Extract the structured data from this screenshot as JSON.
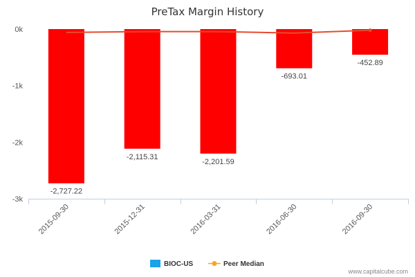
{
  "chart_data": {
    "type": "bar",
    "title": "PreTax Margin History",
    "categories": [
      "2015-09-30",
      "2015-12-31",
      "2016-03-31",
      "2016-06-30",
      "2016-09-30"
    ],
    "series": [
      {
        "name": "BIOC-US",
        "type": "bar",
        "values": [
          -2727.22,
          -2115.31,
          -2201.59,
          -693.01,
          -452.89
        ],
        "labels": [
          "-2,727.22",
          "-2,115.31",
          "-2,201.59",
          "-693.01",
          "-452.89"
        ],
        "color": "#ff0000",
        "legend_color": "#1aa3e8"
      },
      {
        "name": "Peer Median",
        "type": "line",
        "values": [
          -60,
          -45,
          -45,
          -70,
          -20
        ],
        "color": "#e84a2c",
        "legend_color": "#f5a623"
      }
    ],
    "ylim": [
      -3000,
      0
    ],
    "yticks": [
      {
        "value": 0,
        "label": "0k"
      },
      {
        "value": -1000,
        "label": "-1k"
      },
      {
        "value": -2000,
        "label": "-2k"
      },
      {
        "value": -3000,
        "label": "-3k"
      }
    ],
    "grid": false,
    "legend_placement": "bottom-center"
  },
  "footer": {
    "watermark": "www.capitalcube.com"
  }
}
